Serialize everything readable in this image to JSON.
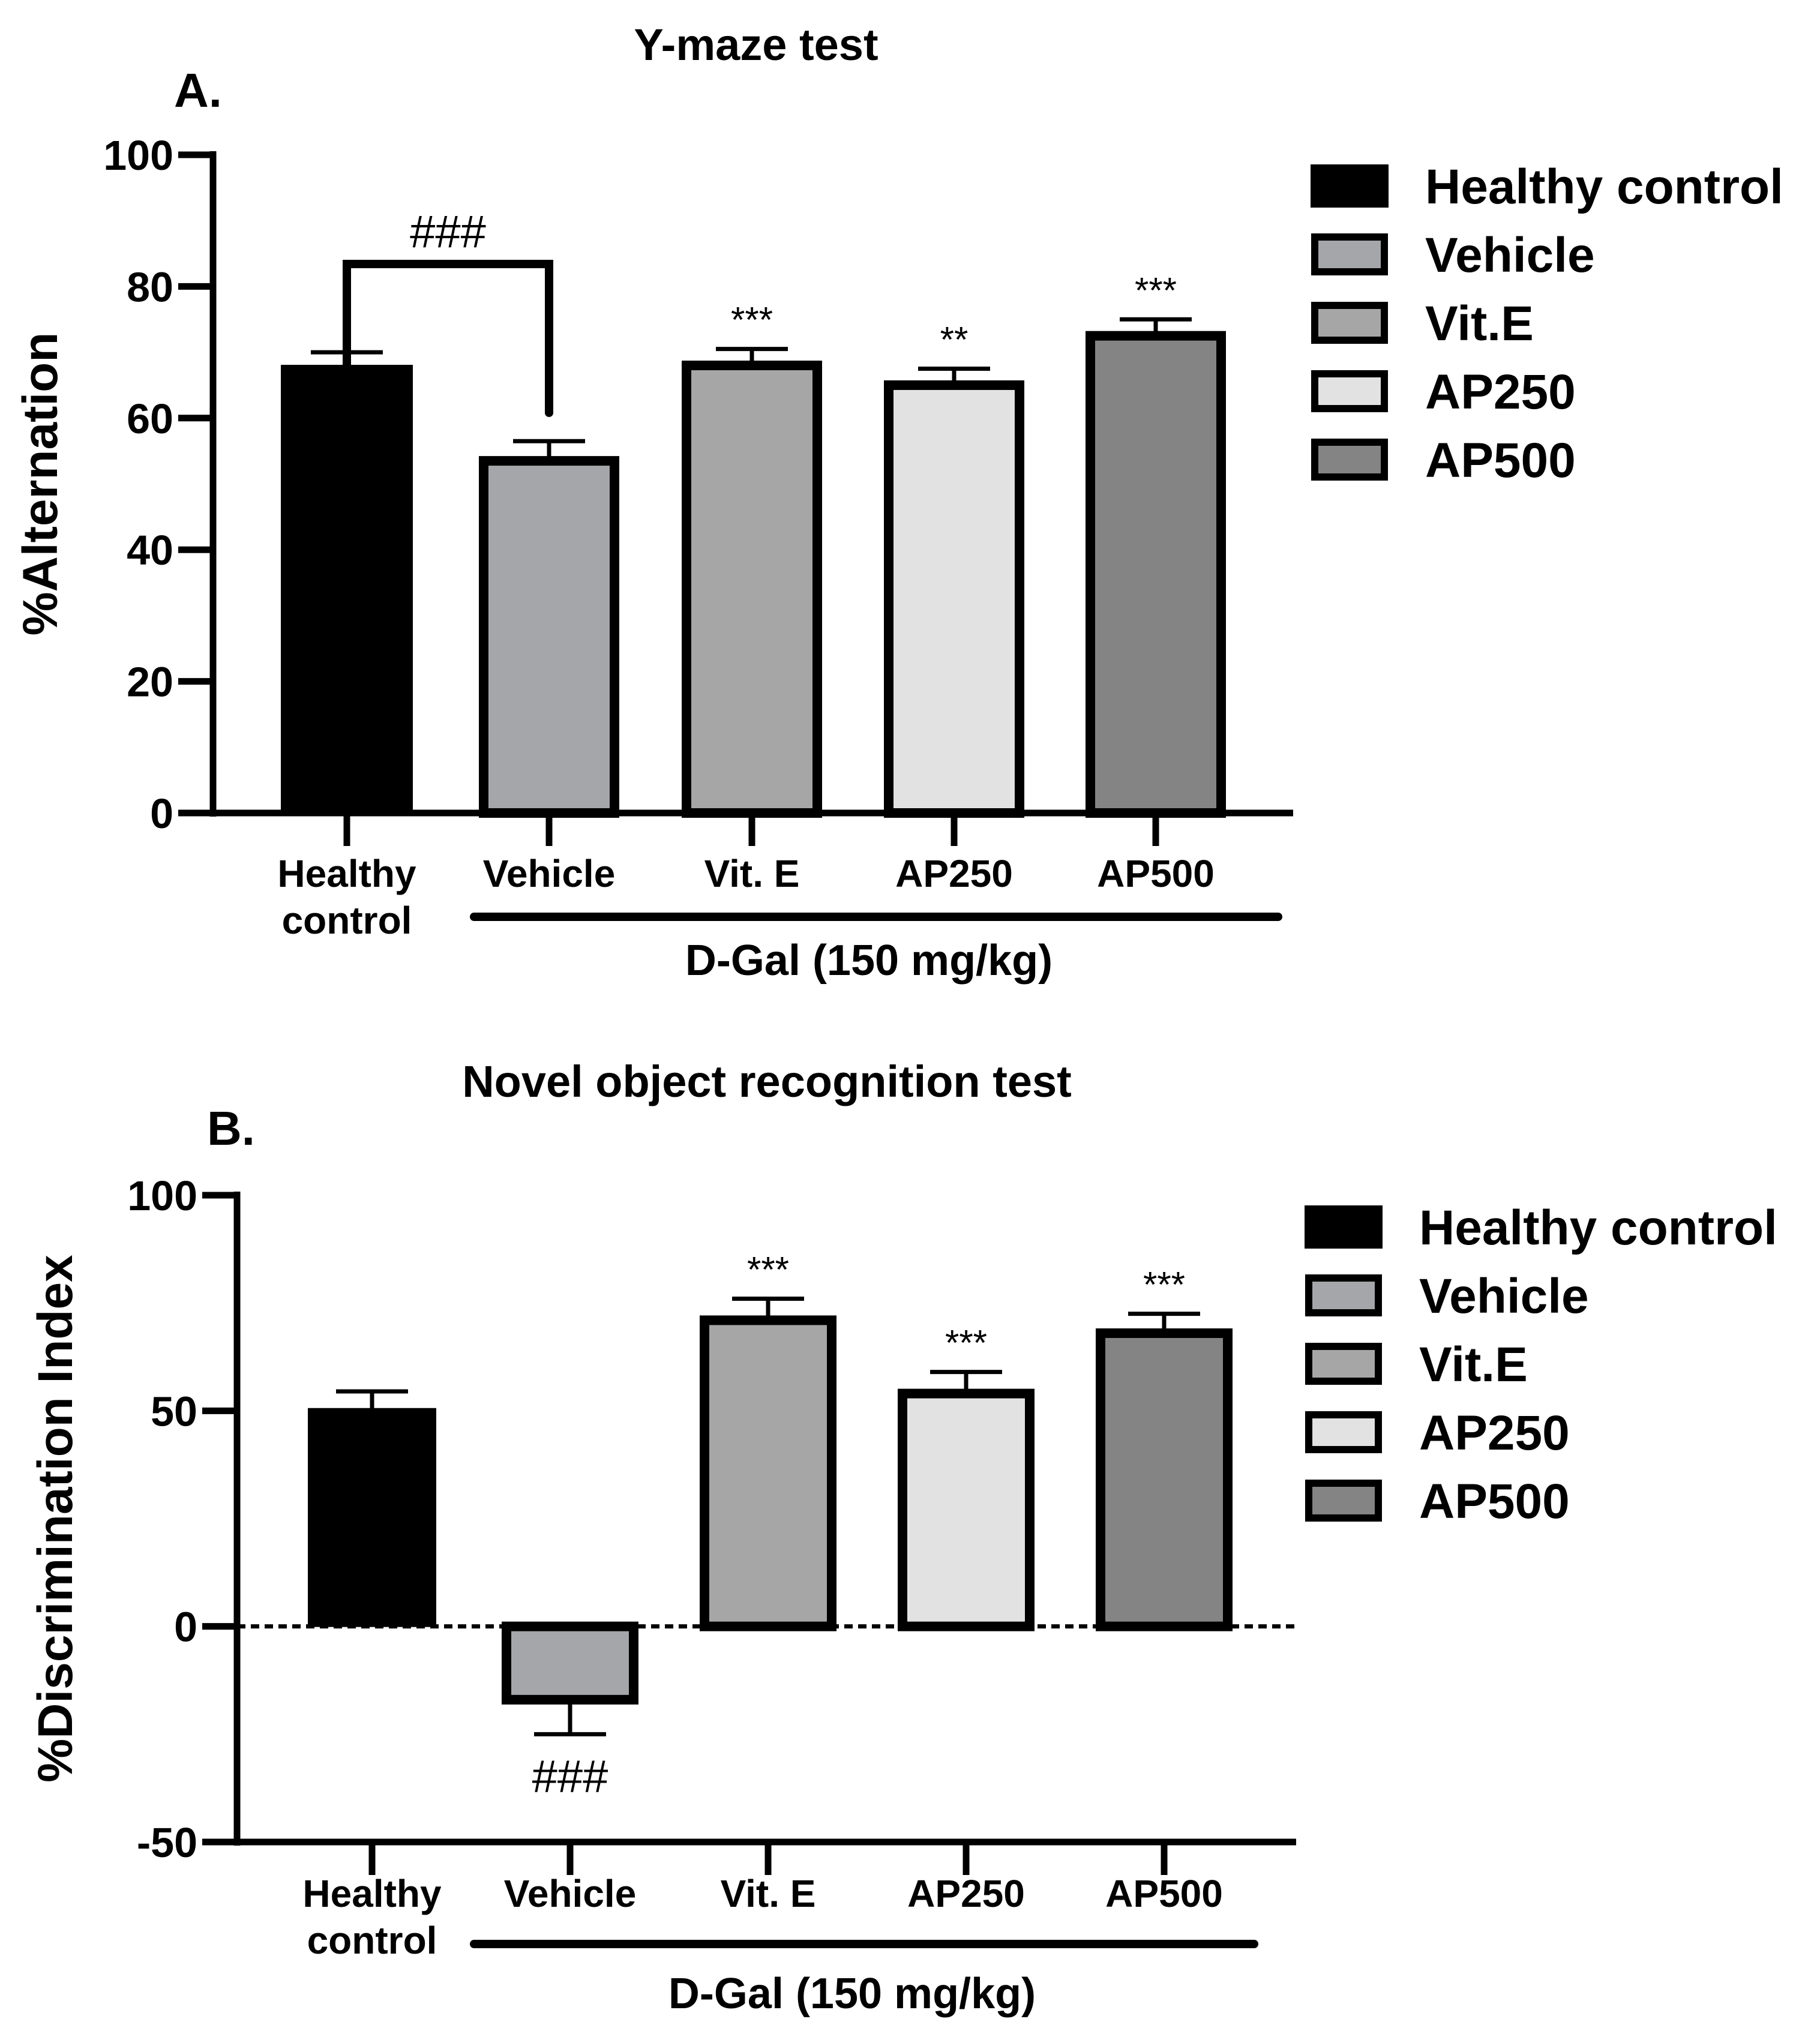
{
  "chart_data": [
    {
      "type": "bar",
      "panel": "A.",
      "title": "Y-maze test",
      "ylabel": "%Alternation",
      "xlabel": "",
      "ylim": [
        0,
        100
      ],
      "yticks": [
        "0",
        "20",
        "40",
        "60",
        "80",
        "100"
      ],
      "categories": [
        [
          "Healthy",
          "control"
        ],
        [
          "Vehicle"
        ],
        [
          "Vit. E"
        ],
        [
          "AP250"
        ],
        [
          "AP500"
        ]
      ],
      "values": [
        68,
        53.5,
        68,
        65,
        72.5
      ],
      "errors": [
        2,
        3,
        2.5,
        2.5,
        2.5
      ],
      "colors": [
        "#000000",
        "#a5a6aa",
        "#a6a6a6",
        "#e2e2e2",
        "#848484"
      ],
      "annotations": [
        "",
        "",
        "***",
        "**",
        "***"
      ],
      "bracket_label": "###",
      "group_label": "D-Gal (150 mg/kg)",
      "legend": [
        "Healthy control",
        "Vehicle",
        "Vit.E",
        "AP250",
        "AP500"
      ]
    },
    {
      "type": "bar",
      "panel": "B.",
      "title": "Novel object recognition test",
      "ylabel": "%Discrimination Index",
      "xlabel": "",
      "ylim": [
        -50,
        100
      ],
      "yticks": [
        "-50",
        "0",
        "50",
        "100"
      ],
      "categories": [
        [
          "Healthy",
          "control"
        ],
        [
          "Vehicle"
        ],
        [
          "Vit. E"
        ],
        [
          "AP250"
        ],
        [
          "AP500"
        ]
      ],
      "values": [
        50.5,
        -17,
        71,
        54,
        68
      ],
      "errors": [
        4,
        8,
        5,
        5,
        4.5
      ],
      "colors": [
        "#000000",
        "#a5a6aa",
        "#a6a6a6",
        "#e2e2e2",
        "#848484"
      ],
      "annotations": [
        "",
        "###",
        "***",
        "***",
        "***"
      ],
      "group_label": "D-Gal (150 mg/kg)",
      "legend": [
        "Healthy control",
        "Vehicle",
        "Vit.E",
        "AP250",
        "AP500"
      ]
    }
  ]
}
